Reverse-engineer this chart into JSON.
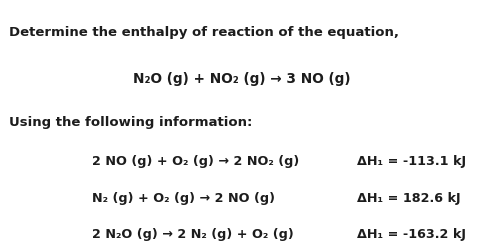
{
  "bg_color": "#ffffff",
  "text_color": "#1c1c1c",
  "title_line": "Determine the enthalpy of reaction of the equation,",
  "main_eq": "N₂O (g) + NO₂ (g) → 3 NO (g)",
  "info_line": "Using the following information:",
  "eq1_left": "2 NO (g) + O₂ (g) → 2 NO₂ (g)",
  "eq1_right": "ΔH₁ = -113.1 kJ",
  "eq2_left": "N₂ (g) + O₂ (g) → 2 NO (g)",
  "eq2_right": "ΔH₁ = 182.6 kJ",
  "eq3_left": "2 N₂O (g) → 2 N₂ (g) + O₂ (g)",
  "eq3_right": "ΔH₁ = -163.2 kJ",
  "font_size_title": 9.5,
  "font_size_main_eq": 9.8,
  "font_size_info": 9.5,
  "font_size_eq": 9.2,
  "font_family": "DejaVu Sans"
}
